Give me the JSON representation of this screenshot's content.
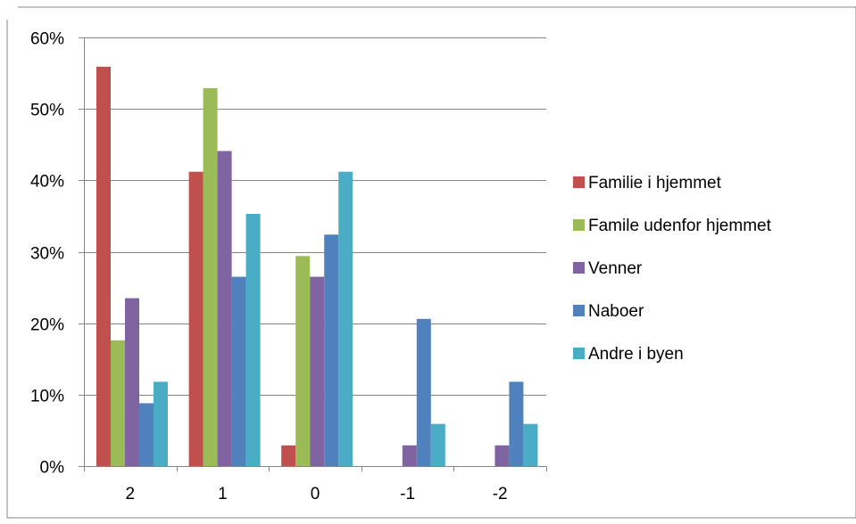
{
  "chart_data": {
    "type": "bar",
    "title": "",
    "xlabel": "",
    "ylabel": "",
    "categories": [
      "2",
      "1",
      "0",
      "-1",
      "-2"
    ],
    "ylim": [
      0,
      0.6
    ],
    "yticks": [
      0,
      0.1,
      0.2,
      0.3,
      0.4,
      0.5,
      0.6
    ],
    "ytick_labels": [
      "0%",
      "10%",
      "20%",
      "30%",
      "40%",
      "50%",
      "60%"
    ],
    "grid": true,
    "legend_position": "right",
    "series": [
      {
        "name": "Familie i hjemmet",
        "color": "#C0504D",
        "values": [
          0.559,
          0.412,
          0.029,
          0,
          0
        ]
      },
      {
        "name": "Famile udenfor hjemmet",
        "color": "#9BBB59",
        "values": [
          0.176,
          0.529,
          0.294,
          0,
          0
        ]
      },
      {
        "name": "Venner",
        "color": "#8064A2",
        "values": [
          0.235,
          0.441,
          0.265,
          0.029,
          0.029
        ]
      },
      {
        "name": "Naboer",
        "color": "#4F81BD",
        "values": [
          0.088,
          0.265,
          0.324,
          0.206,
          0.118
        ]
      },
      {
        "name": "Andre i byen",
        "color": "#4BACC6",
        "values": [
          0.118,
          0.353,
          0.412,
          0.059,
          0.059
        ]
      }
    ]
  }
}
